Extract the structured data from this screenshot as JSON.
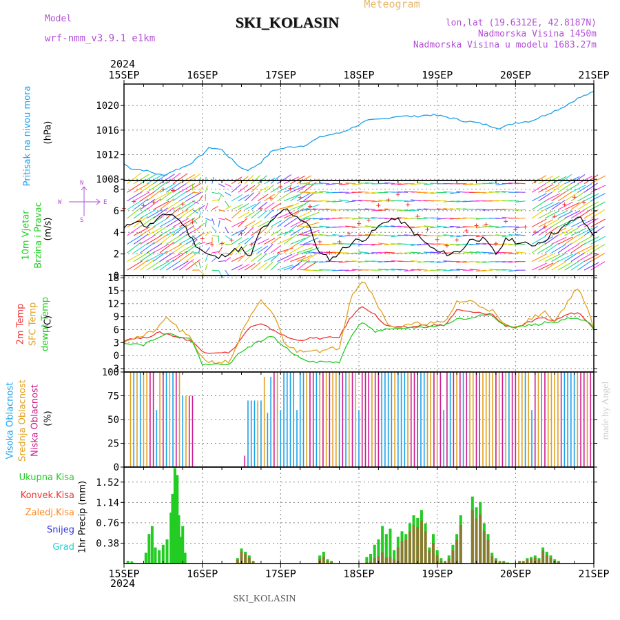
{
  "header": {
    "model_label": "Model",
    "model_name": "wrf-nmm_v3.9.1 e1km",
    "title": "SKI_KOLASIN",
    "subtitle": "Meteogram",
    "lonlat": "lon,lat (19.6312E, 42.8187N)",
    "elevation": "Nadmorska Visina 1450m",
    "model_elevation": "Nadmorska Visina u modelu 1683.27m"
  },
  "footer": {
    "station": "SKI_KOLASIN",
    "credit": "made by Angel"
  },
  "x_axis": {
    "year": "2024",
    "tick_labels": [
      "15SEP",
      "16SEP",
      "17SEP",
      "18SEP",
      "19SEP",
      "20SEP",
      "21SEP"
    ]
  },
  "colors": {
    "pressure": "#1aa0e8",
    "temp2m": "#ee3333",
    "tempsfc": "#e0a020",
    "dewpt": "#22cc22",
    "high_cloud": "#1aa0e8",
    "mid_cloud": "#e0a020",
    "low_cloud": "#cc1a8c",
    "total_precip": "#22cc22",
    "conv_precip": "#ee3333",
    "frozen_precip": "#ff8820",
    "snow": "#3333dd",
    "hail": "#22cccc"
  },
  "chart_data": [
    {
      "type": "line",
      "panel": "pressure",
      "ylabel": "(hPa)",
      "series_label": "Pritisak na nivou mora",
      "yticks": [
        1008,
        1012,
        1016,
        1020
      ],
      "ylim": [
        1007.8,
        1023.5
      ],
      "x_days": [
        0,
        0.1,
        0.25,
        0.5,
        0.65,
        0.8,
        0.95,
        1.1,
        1.25,
        1.35,
        1.5,
        1.6,
        1.75,
        1.9,
        2.1,
        2.3,
        2.5,
        2.6,
        2.75,
        2.9,
        3.1,
        3.3,
        3.5,
        3.7,
        3.9,
        4.1,
        4.3,
        4.5,
        4.65,
        4.8,
        5.0,
        5.2,
        5.4,
        5.6,
        5.8,
        6.0
      ],
      "values": [
        1010.5,
        1009.7,
        1009.5,
        1008.6,
        1009.5,
        1010.2,
        1011.5,
        1013.2,
        1012.8,
        1011.5,
        1009.8,
        1009.5,
        1010.8,
        1012.7,
        1013.2,
        1013.5,
        1014.8,
        1015.2,
        1015.5,
        1016.3,
        1017.5,
        1017.8,
        1018.3,
        1018.2,
        1018.5,
        1018.2,
        1017.6,
        1017.2,
        1016.8,
        1016.3,
        1017.2,
        1017.5,
        1018.6,
        1019.7,
        1021.2,
        1022.2
      ]
    },
    {
      "type": "line",
      "panel": "wind",
      "ylabel": "(m/s)",
      "series_label": "10m Vjetar",
      "series_label2": "Brzina i Pravac",
      "compass": "N",
      "compass_e": "E",
      "compass_w": "W",
      "compass_s": "S",
      "yticks": [
        0,
        2,
        4,
        6,
        8
      ],
      "ylim": [
        0,
        8.8
      ],
      "x_days": [
        0,
        0.15,
        0.3,
        0.45,
        0.6,
        0.75,
        0.9,
        1.05,
        1.2,
        1.35,
        1.5,
        1.6,
        1.75,
        1.9,
        2.05,
        2.2,
        2.35,
        2.5,
        2.65,
        2.8,
        2.95,
        3.1,
        3.25,
        3.4,
        3.55,
        3.7,
        3.85,
        4.0,
        4.15,
        4.3,
        4.45,
        4.6,
        4.75,
        4.9,
        5.05,
        5.2,
        5.35,
        5.5,
        5.65,
        5.8,
        6.0
      ],
      "values": [
        4.3,
        5.2,
        4.5,
        5.3,
        5.8,
        4.8,
        3.0,
        2.0,
        1.6,
        2.2,
        2.5,
        1.5,
        4.3,
        5.0,
        6.2,
        5.5,
        4.8,
        2.0,
        1.5,
        2.5,
        3.2,
        3.5,
        4.5,
        5.3,
        5.0,
        4.0,
        3.0,
        2.2,
        2.0,
        2.3,
        3.5,
        3.3,
        2.0,
        3.5,
        3.0,
        2.8,
        3.2,
        4.0,
        4.6,
        5.5,
        3.8
      ]
    },
    {
      "type": "line",
      "panel": "temperature",
      "ylabel": "(C)",
      "series_labels": [
        "2m Temp",
        "SFC Temp",
        "dewpt Temp"
      ],
      "yticks": [
        -3,
        0,
        3,
        6,
        9,
        12,
        15,
        18
      ],
      "ylim": [
        -3.8,
        18.5
      ],
      "x_days": [
        0,
        0.1,
        0.25,
        0.45,
        0.55,
        0.7,
        0.85,
        1.0,
        1.1,
        1.25,
        1.35,
        1.5,
        1.6,
        1.75,
        1.9,
        2.05,
        2.2,
        2.4,
        2.55,
        2.75,
        2.9,
        3.05,
        3.2,
        3.35,
        3.5,
        3.65,
        3.8,
        3.95,
        4.1,
        4.25,
        4.45,
        4.55,
        4.7,
        4.85,
        5.0,
        5.15,
        5.3,
        5.4,
        5.5,
        5.65,
        5.8,
        5.95,
        6.0
      ],
      "series": [
        {
          "name": "2m Temp",
          "values": [
            3.5,
            4.0,
            4.0,
            5.3,
            5.0,
            4.2,
            3.5,
            1.0,
            0.7,
            0.8,
            0.5,
            4.0,
            6.5,
            7.2,
            6.0,
            4.5,
            3.5,
            4.0,
            4.0,
            4.3,
            9.0,
            11.5,
            9.5,
            6.8,
            6.5,
            6.5,
            7.0,
            7.0,
            7.0,
            10.5,
            10.0,
            9.8,
            9.6,
            7.0,
            6.5,
            7.5,
            8.5,
            8.5,
            8.0,
            9.5,
            10.0,
            7.5,
            6.2
          ]
        },
        {
          "name": "SFC Temp",
          "values": [
            3.5,
            4.0,
            4.5,
            6.5,
            9.0,
            6.0,
            4.0,
            -0.5,
            -1.5,
            -1.5,
            -1.5,
            5.0,
            8.5,
            12.5,
            10.0,
            3.0,
            1.0,
            1.5,
            1.0,
            2.0,
            14.0,
            17.5,
            13.5,
            7.5,
            6.5,
            7.0,
            7.5,
            7.5,
            7.5,
            12.5,
            12.5,
            11.5,
            10.5,
            7.0,
            6.5,
            8.0,
            9.5,
            10.0,
            8.0,
            12.0,
            16.0,
            9.0,
            6.0
          ]
        },
        {
          "name": "dewpt Temp",
          "values": [
            3.0,
            2.8,
            2.5,
            4.5,
            5.0,
            4.5,
            4.0,
            -2.0,
            -2.0,
            -2.0,
            -1.8,
            1.0,
            2.0,
            3.5,
            4.5,
            2.0,
            0.0,
            -1.5,
            -1.5,
            -1.5,
            4.5,
            8.0,
            5.5,
            6.0,
            6.0,
            6.5,
            6.5,
            6.8,
            7.0,
            8.5,
            8.5,
            9.5,
            9.5,
            7.0,
            6.5,
            7.0,
            7.2,
            7.8,
            7.5,
            8.5,
            8.5,
            7.5,
            6.0
          ]
        }
      ]
    },
    {
      "type": "bar",
      "panel": "cloud",
      "ylabel": "(%)",
      "series_labels": [
        "Visoka Oblacnost",
        "Srednja Oblacnost",
        "Niska Oblacnost"
      ],
      "yticks": [
        0,
        25,
        50,
        75,
        100
      ],
      "ylim": [
        0,
        100
      ],
      "segments": [
        {
          "x0": 0.07,
          "x1": 0.75,
          "value": 100
        },
        {
          "x0": 0.75,
          "x1": 0.9,
          "value": 75
        },
        {
          "x0": 1.52,
          "x1": 1.58,
          "value": 12
        },
        {
          "x0": 1.58,
          "x1": 1.78,
          "value": 70
        },
        {
          "x0": 1.78,
          "x1": 1.9,
          "value": 95
        },
        {
          "x0": 1.9,
          "x1": 6.0,
          "value": 100
        }
      ]
    },
    {
      "type": "bar",
      "panel": "precip",
      "ylabel": "1hr Precip (mm)",
      "series_labels": [
        "Ukupna Kisa",
        "Konvek.Kisa",
        "Zaledj.Kisa",
        "Snijeg",
        "Grad"
      ],
      "yticks": [
        0.38,
        0.76,
        1.14,
        1.52
      ],
      "ylim": [
        0,
        1.8
      ],
      "x_days": [
        0.05,
        0.1,
        0.28,
        0.32,
        0.36,
        0.4,
        0.45,
        0.5,
        0.55,
        0.6,
        0.62,
        0.65,
        0.68,
        0.7,
        0.72,
        0.75,
        0.78,
        1.45,
        1.5,
        1.55,
        1.6,
        1.65,
        2.5,
        2.55,
        2.6,
        2.65,
        3.1,
        3.15,
        3.2,
        3.25,
        3.3,
        3.35,
        3.4,
        3.45,
        3.5,
        3.55,
        3.6,
        3.65,
        3.7,
        3.75,
        3.8,
        3.85,
        3.9,
        3.95,
        4.0,
        4.05,
        4.1,
        4.15,
        4.2,
        4.25,
        4.3,
        4.45,
        4.5,
        4.55,
        4.6,
        4.65,
        4.7,
        4.75,
        4.8,
        4.85,
        4.9,
        5.05,
        5.1,
        5.15,
        5.2,
        5.25,
        5.3,
        5.35,
        5.4,
        5.45,
        5.5,
        5.55
      ],
      "values": [
        0.05,
        0.04,
        0.2,
        0.55,
        0.7,
        0.3,
        0.25,
        0.35,
        0.45,
        0.95,
        1.3,
        1.78,
        1.65,
        0.9,
        0.5,
        0.7,
        0.2,
        0.1,
        0.28,
        0.22,
        0.15,
        0.05,
        0.15,
        0.22,
        0.08,
        0.05,
        0.12,
        0.18,
        0.35,
        0.45,
        0.7,
        0.55,
        0.65,
        0.25,
        0.5,
        0.6,
        0.55,
        0.75,
        0.9,
        0.85,
        1.0,
        0.75,
        0.3,
        0.55,
        0.25,
        0.1,
        0.05,
        0.15,
        0.35,
        0.55,
        0.9,
        1.25,
        1.05,
        1.15,
        0.75,
        0.55,
        0.2,
        0.1,
        0.05,
        0.05,
        0.02,
        0.05,
        0.05,
        0.1,
        0.12,
        0.15,
        0.1,
        0.3,
        0.22,
        0.15,
        0.08,
        0.05
      ],
      "convective_fraction": [
        0,
        0,
        0,
        0,
        0,
        0,
        0,
        0,
        0,
        0,
        0,
        0,
        0,
        0,
        0,
        0,
        0,
        0.7,
        0.8,
        0.8,
        0.7,
        0.5,
        0.6,
        0.6,
        0.6,
        0.5,
        0.2,
        0.2,
        0.3,
        0.3,
        0.3,
        0.2,
        0.2,
        0.3,
        0.6,
        0.7,
        0.8,
        0.8,
        0.8,
        0.8,
        0.8,
        0.8,
        0.8,
        0.7,
        0.6,
        0.5,
        0.5,
        0.6,
        0.7,
        0.8,
        0.8,
        0.8,
        0.8,
        0.8,
        0.8,
        0.8,
        0.7,
        0.6,
        0.5,
        0.5,
        0.5,
        0.6,
        0.6,
        0.7,
        0.7,
        0.7,
        0.7,
        0.8,
        0.7,
        0.7,
        0.6,
        0.5
      ]
    }
  ]
}
